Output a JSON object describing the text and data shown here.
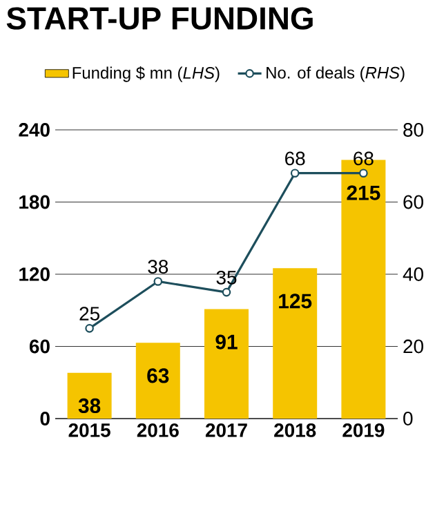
{
  "chart_data": {
    "type": "bar",
    "title": "START-UP FUNDING",
    "categories": [
      "2015",
      "2016",
      "2017",
      "2018",
      "2019"
    ],
    "series": [
      {
        "name": "Funding $ mn (*LHS*)",
        "color": "#f5c400",
        "values": [
          38,
          63,
          91,
          125,
          215
        ]
      },
      {
        "name": "No. of deals (*RHS*)",
        "type": "line",
        "axis": "y2",
        "color": "#1d4e5c",
        "marker": "circle",
        "values": [
          25,
          38,
          35,
          68,
          68
        ]
      }
    ],
    "ylim": [
      0,
      240
    ],
    "yticks": [
      0,
      60,
      120,
      180,
      240
    ],
    "y2lim": [
      0,
      80
    ],
    "y2ticks": [
      0,
      20,
      40,
      60,
      80
    ],
    "grid": "y",
    "legend": "top",
    "data_labels": true
  }
}
